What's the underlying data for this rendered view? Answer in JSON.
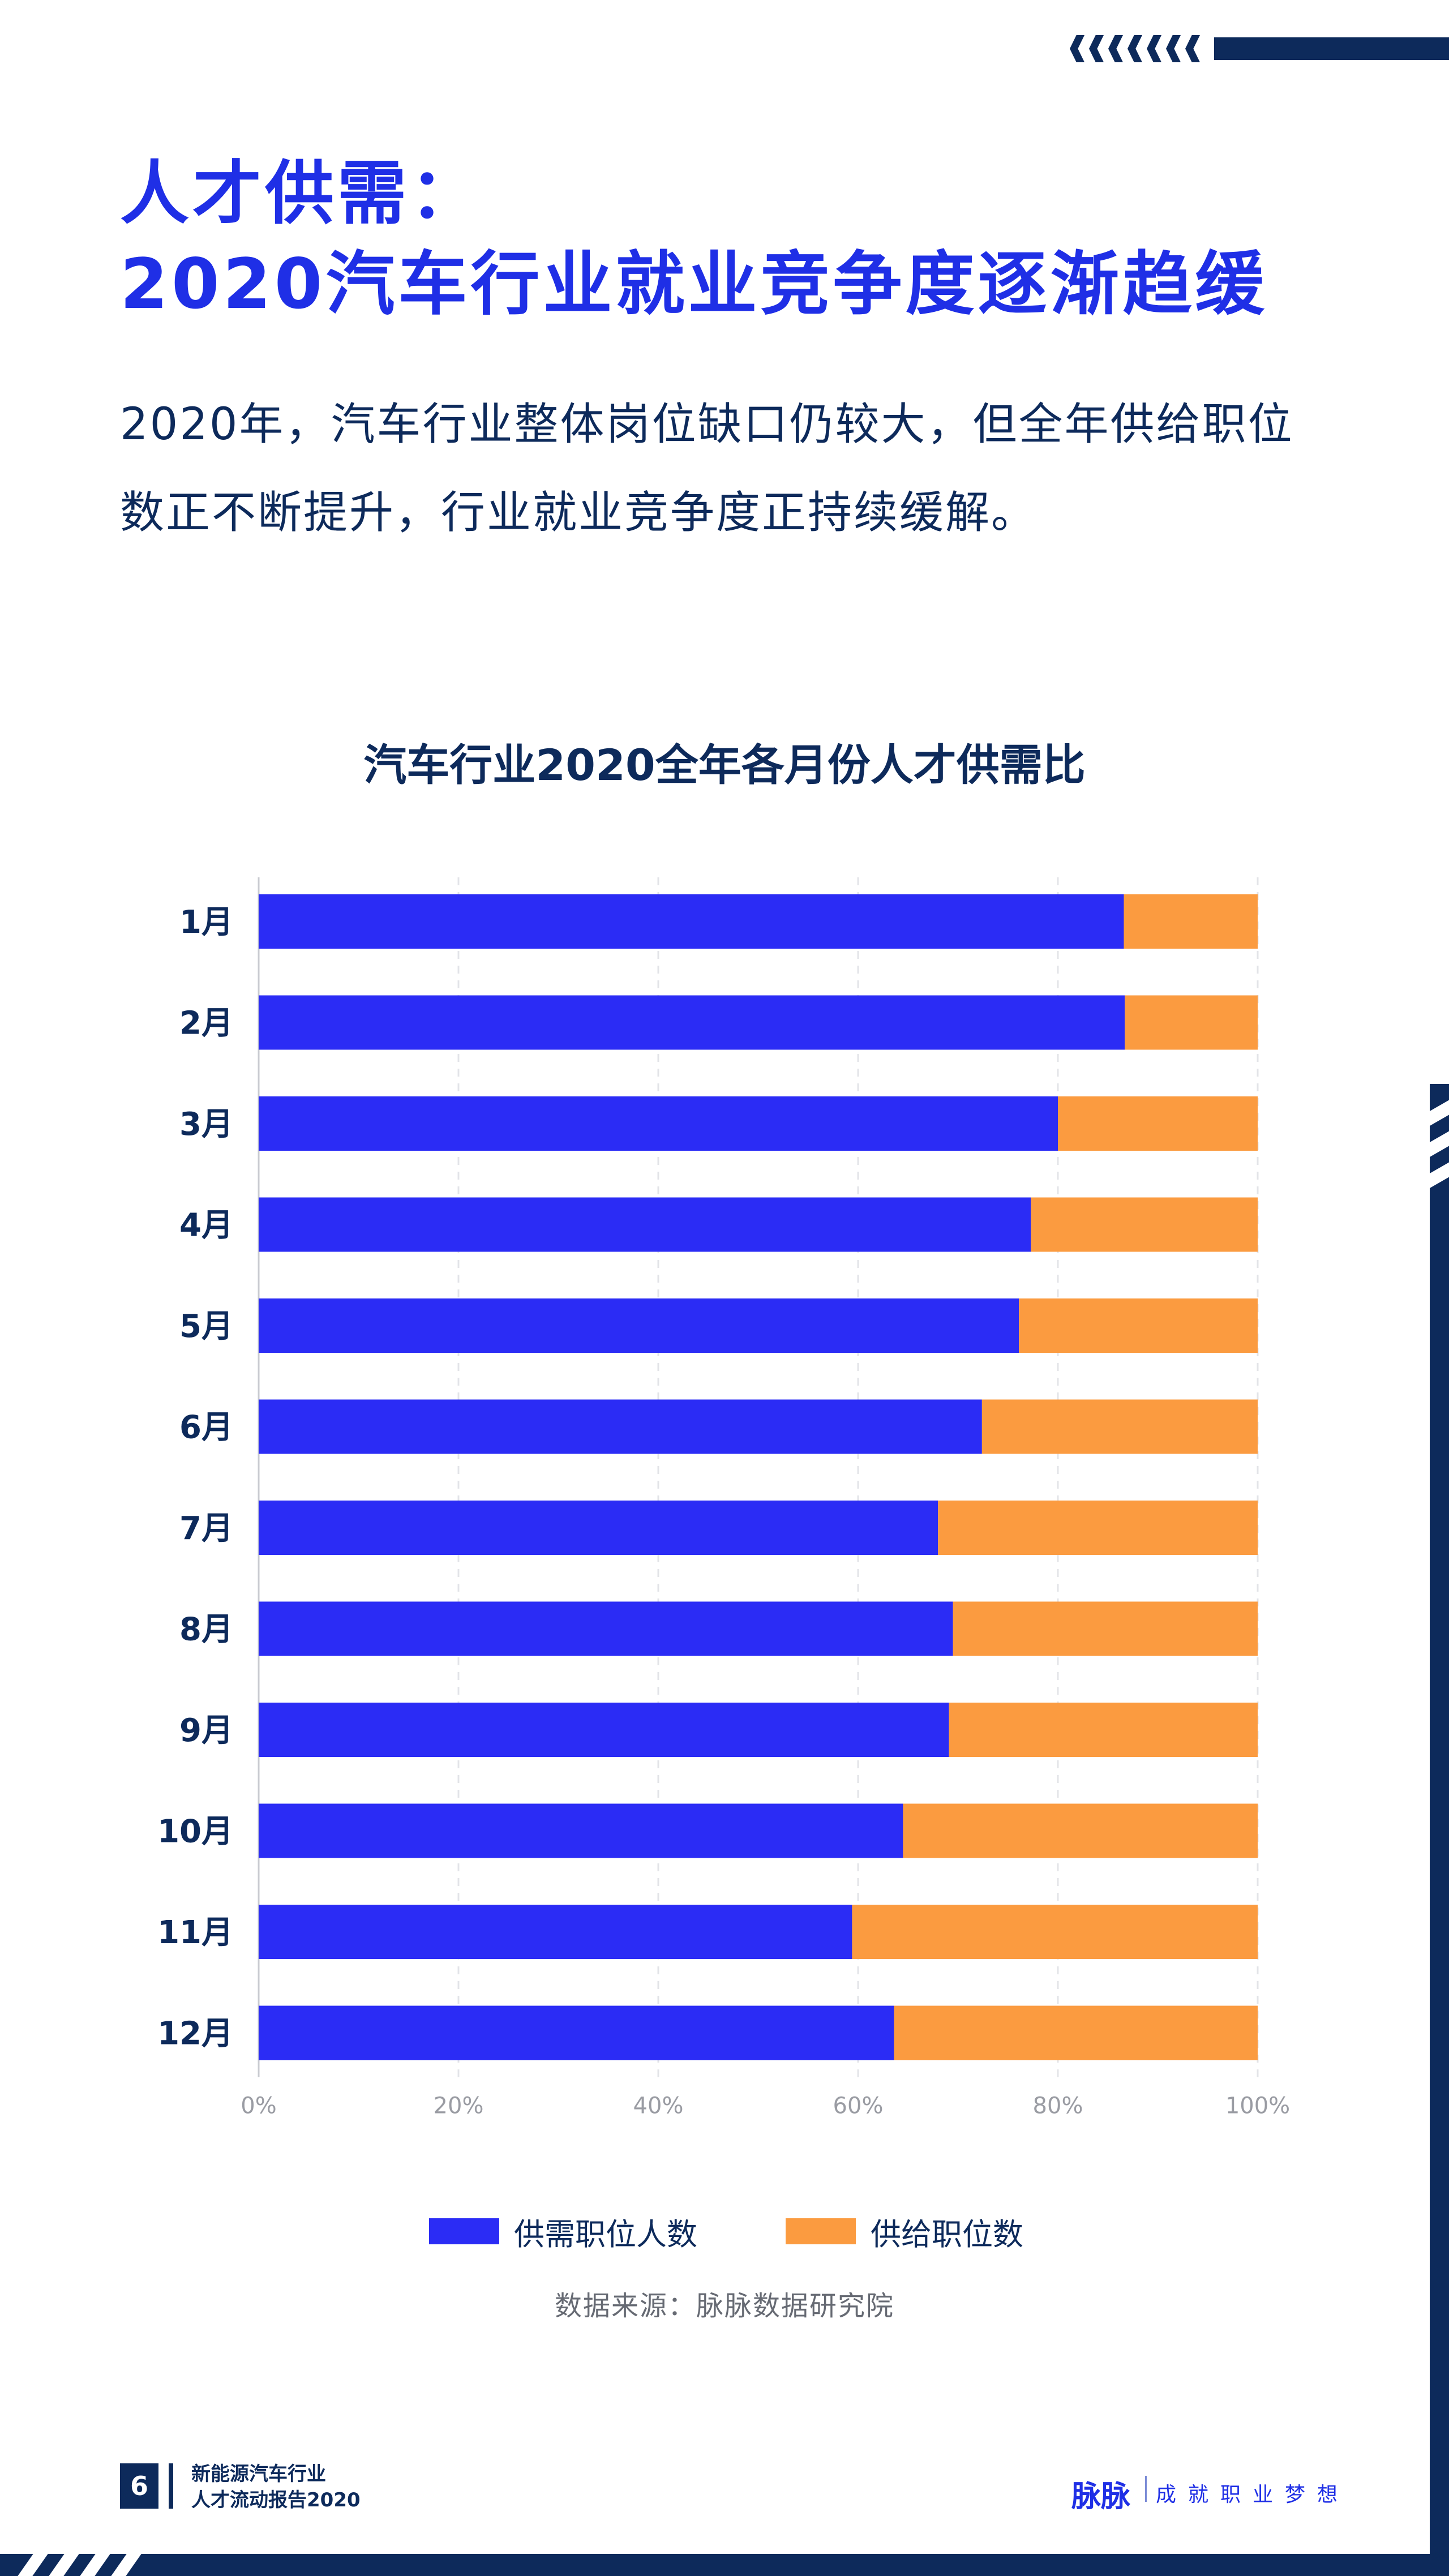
{
  "header": {
    "title_line1": "人才供需：",
    "title_line2": "2020汽车行业就业竞争度逐渐趋缓",
    "intro_line1": "2020年，汽车行业整体岗位缺口仍较大，但全年供给职位",
    "intro_line2": "数正不断提升，行业就业竞争度正持续缓解。"
  },
  "chart_data": {
    "type": "bar",
    "orientation": "horizontal",
    "stacked": true,
    "percent_stacked": true,
    "title": "汽车行业2020全年各月份人才供需比",
    "categories": [
      "1月",
      "2月",
      "3月",
      "4月",
      "5月",
      "6月",
      "7月",
      "8月",
      "9月",
      "10月",
      "11月",
      "12月"
    ],
    "series": [
      {
        "name": "供需职位人数",
        "color": "#2b2cf5",
        "values": [
          86.6,
          86.7,
          80.0,
          77.3,
          76.1,
          72.4,
          68.0,
          69.5,
          69.1,
          64.5,
          59.4,
          63.6
        ]
      },
      {
        "name": "供给职位数",
        "color": "#fb9b40",
        "values": [
          13.4,
          13.3,
          20.0,
          22.7,
          23.9,
          27.6,
          32.0,
          30.5,
          30.9,
          35.5,
          40.6,
          36.4
        ]
      }
    ],
    "x_ticks": [
      "0%",
      "20%",
      "40%",
      "60%",
      "80%",
      "100%"
    ],
    "xlim": [
      0,
      100
    ],
    "grid": true,
    "legend_position": "bottom"
  },
  "source": "数据来源：脉脉数据研究院",
  "footer": {
    "page_number": "6",
    "report_line1": "新能源汽车行业",
    "report_line2": "人才流动报告2020",
    "brand": "脉脉",
    "slogan": "成就职业梦想"
  },
  "colors": {
    "navy": "#0d2a5b",
    "blue": "#2b2cf5",
    "orange": "#fb9b40",
    "title_blue": "#1f2fe6"
  }
}
